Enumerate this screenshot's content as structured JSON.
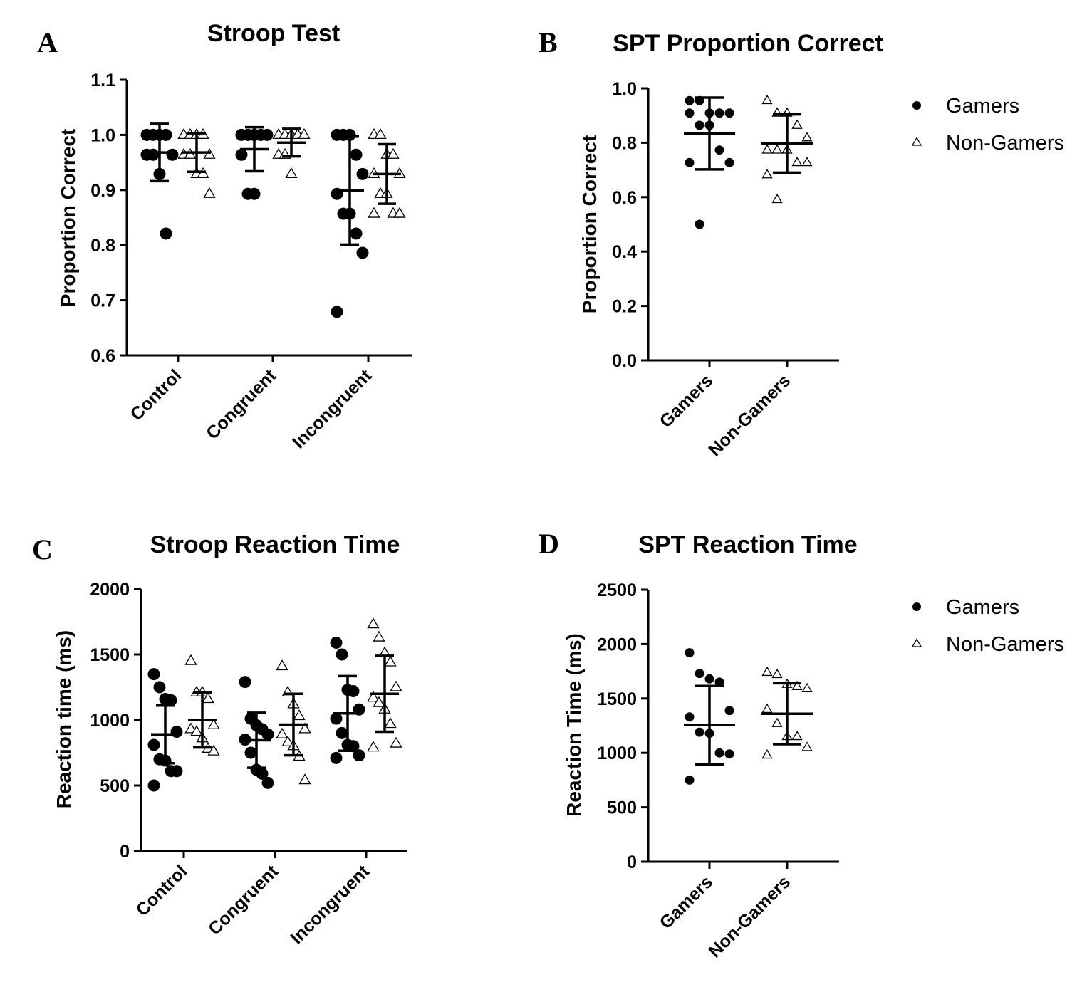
{
  "chart_data": [
    {
      "id": "A",
      "panel_label": "A",
      "type": "scatter",
      "title": "Stroop Test",
      "ylabel": "Proportion Correct",
      "ylim": [
        0.6,
        1.1
      ],
      "yticks": [
        0.6,
        0.7,
        0.8,
        0.9,
        1.0,
        1.1
      ],
      "ytick_labels": [
        "0.6",
        "0.7",
        "0.8",
        "0.9",
        "1.0",
        "1.1"
      ],
      "categories": [
        "Control",
        "Congruent",
        "Incongruent"
      ],
      "series": [
        {
          "name": "Gamers",
          "marker": "circle",
          "points": [
            [
              1,
              1,
              1,
              1,
              0.964,
              0.964,
              0.964,
              0.929,
              0.821
            ],
            [
              1,
              1,
              1,
              1,
              1,
              0.964,
              0.893,
              0.893
            ],
            [
              1,
              1,
              1,
              0.964,
              0.929,
              0.893,
              0.857,
              0.857,
              0.821,
              0.786,
              0.679
            ]
          ],
          "mean": [
            0.968,
            0.974,
            0.899
          ],
          "sd": [
            0.052,
            0.04,
            0.098
          ]
        },
        {
          "name": "Non-Gamers",
          "marker": "triangle",
          "points": [
            [
              1,
              1,
              1,
              1,
              0.964,
              0.964,
              0.964,
              0.929,
              0.929,
              0.893
            ],
            [
              1,
              1,
              1,
              1,
              1,
              0.964,
              0.964,
              0.929
            ],
            [
              1,
              1,
              0.964,
              0.964,
              0.929,
              0.929,
              0.893,
              0.893,
              0.857,
              0.857,
              0.857
            ]
          ],
          "mean": [
            0.968,
            0.986,
            0.929
          ],
          "sd": [
            0.035,
            0.025,
            0.054
          ]
        }
      ]
    },
    {
      "id": "B",
      "panel_label": "B",
      "type": "scatter",
      "title": "SPT Proportion Correct",
      "ylabel": "Proportion  Correct",
      "ylim": [
        0.0,
        1.0
      ],
      "yticks": [
        0.0,
        0.2,
        0.4,
        0.6,
        0.8,
        1.0
      ],
      "ytick_labels": [
        "0.0",
        "0.2",
        "0.4",
        "0.6",
        "0.8",
        "1.0"
      ],
      "categories": [
        "Gamers",
        "Non-Gamers"
      ],
      "series": [
        {
          "name": "Gamers",
          "marker": "circle",
          "category_index": 0,
          "points": [
            0.955,
            0.955,
            0.909,
            0.909,
            0.909,
            0.909,
            0.864,
            0.864,
            0.773,
            0.727,
            0.727,
            0.5
          ],
          "mean": 0.834,
          "sd": 0.132
        },
        {
          "name": "Non-Gamers",
          "marker": "triangle",
          "category_index": 1,
          "points": [
            0.955,
            0.909,
            0.909,
            0.864,
            0.818,
            0.773,
            0.773,
            0.773,
            0.727,
            0.727,
            0.682,
            0.591
          ],
          "mean": 0.797,
          "sd": 0.107
        }
      ],
      "legend": {
        "position": "right",
        "entries": [
          "Gamers",
          "Non-Gamers"
        ]
      }
    },
    {
      "id": "C",
      "panel_label": "C",
      "type": "scatter",
      "title": "Stroop Reaction Time",
      "ylabel": "Reaction time (ms)",
      "ylim": [
        0,
        2000
      ],
      "yticks": [
        0,
        500,
        1000,
        1500,
        2000
      ],
      "ytick_labels": [
        "0",
        "500",
        "1000",
        "1500",
        "2000"
      ],
      "categories": [
        "Control",
        "Congruent",
        "Incongruent"
      ],
      "series": [
        {
          "name": "Gamers",
          "marker": "circle",
          "points": [
            [
              1350,
              1250,
              1160,
              1150,
              910,
              810,
              700,
              690,
              610,
              610,
              500
            ],
            [
              1290,
              1010,
              960,
              930,
              890,
              850,
              750,
              620,
              590,
              520
            ],
            [
              1590,
              1500,
              1230,
              1220,
              1080,
              1010,
              900,
              810,
              800,
              730,
              710
            ]
          ],
          "mean": [
            890,
            845,
            1050
          ],
          "sd": [
            220,
            210,
            285
          ]
        },
        {
          "name": "Non-Gamers",
          "marker": "triangle",
          "points": [
            [
              1450,
              1210,
              1210,
              1160,
              960,
              930,
              910,
              860,
              780,
              760
            ],
            [
              1410,
              1210,
              1120,
              1030,
              930,
              890,
              830,
              800,
              720,
              540
            ],
            [
              1730,
              1630,
              1510,
              1440,
              1250,
              1170,
              1130,
              1080,
              970,
              820,
              790
            ]
          ],
          "mean": [
            1000,
            965,
            1200
          ],
          "sd": [
            210,
            235,
            290
          ]
        }
      ]
    },
    {
      "id": "D",
      "panel_label": "D",
      "type": "scatter",
      "title": "SPT Reaction Time",
      "ylabel": "Reaction Time (ms)",
      "ylim": [
        0,
        2500
      ],
      "yticks": [
        0,
        500,
        1000,
        1500,
        2000,
        2500
      ],
      "ytick_labels": [
        "0",
        "500",
        "1000",
        "1500",
        "2000",
        "2500"
      ],
      "categories": [
        "Gamers",
        "Non-Gamers"
      ],
      "series": [
        {
          "name": "Gamers",
          "marker": "circle",
          "category_index": 0,
          "points": [
            1920,
            1730,
            1680,
            1650,
            1390,
            1330,
            1190,
            1180,
            1000,
            990,
            750
          ],
          "mean": 1255,
          "sd": 360
        },
        {
          "name": "Non-Gamers",
          "marker": "triangle",
          "category_index": 1,
          "points": [
            1740,
            1720,
            1630,
            1610,
            1590,
            1400,
            1270,
            1150,
            1150,
            1050,
            980
          ],
          "mean": 1360,
          "sd": 280
        }
      ],
      "legend": {
        "position": "right",
        "entries": [
          "Gamers",
          "Non-Gamers"
        ]
      }
    }
  ]
}
